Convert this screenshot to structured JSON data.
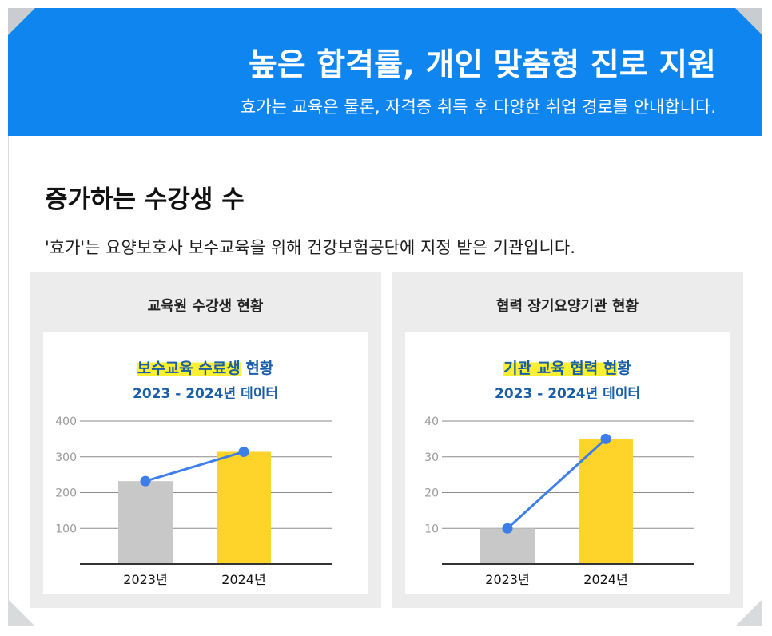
{
  "banner": {
    "title": "높은 합격률, 개인 맞춤형 진로 지원",
    "subtitle": "효가는 교육은 물론, 자격증 취득 후 다양한 취업 경로를 안내합니다."
  },
  "section": {
    "title": "증가하는 수강생 수",
    "description": "'효가'는 요양보호사 보수교육을 위해 건강보험공단에 지정 받은 기관입니다."
  },
  "colors": {
    "banner": "#0f85ef",
    "bar_2023": "#c8c8c8",
    "bar_2024": "#ffd42a",
    "line": "#3d7ee8",
    "title_text": "#1a5ea8",
    "highlight": "#fdf033"
  },
  "chart_data": [
    {
      "type": "bar",
      "panel_title": "교육원 수강생 현황",
      "title_highlight": "보수교육 수료생",
      "title_rest": " 현황",
      "subtitle": "2023 - 2024년 데이터",
      "categories": [
        "2023년",
        "2024년"
      ],
      "values": [
        232,
        314
      ],
      "line_overlay": true,
      "ylim": [
        0,
        400
      ],
      "yticks": [
        "100",
        "200",
        "300",
        "400"
      ],
      "ytick_values": [
        100,
        200,
        300,
        400
      ],
      "grid": true,
      "xlabel": "",
      "ylabel": ""
    },
    {
      "type": "bar",
      "panel_title": "협력 장기요양기관 현황",
      "title_highlight": "기관 교육 협력 현",
      "title_rest": "황",
      "subtitle": "2023 - 2024년 데이터",
      "categories": [
        "2023년",
        "2024년"
      ],
      "values": [
        10,
        35
      ],
      "line_overlay": true,
      "ylim": [
        0,
        40
      ],
      "yticks": [
        "10",
        "20",
        "30",
        "40"
      ],
      "ytick_values": [
        10,
        20,
        30,
        40
      ],
      "grid": true,
      "xlabel": "",
      "ylabel": ""
    }
  ]
}
